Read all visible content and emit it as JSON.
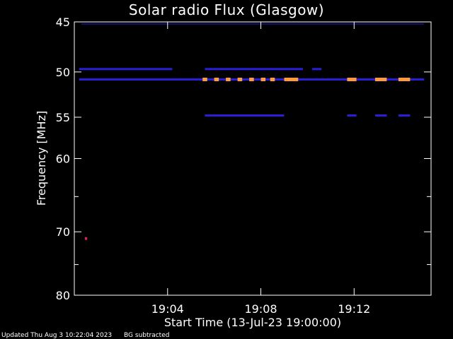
{
  "chart_data": {
    "type": "heatmap",
    "title": "Solar radio Flux (Glasgow)",
    "xlabel": "Start Time (13-Jul-23 19:00:00)",
    "ylabel": "Frequency [MHz]",
    "x_range_min": [
      0,
      15.3
    ],
    "y_range_mhz": [
      45,
      80
    ],
    "y_scale": "log",
    "x_tick_labels": [
      "19:04",
      "19:08",
      "19:12"
    ],
    "x_tick_values_min": [
      4,
      8,
      12
    ],
    "y_tick_labels": [
      "45",
      "50",
      "55",
      "60",
      "70",
      "80"
    ],
    "y_tick_values": [
      45,
      50,
      55,
      60,
      70,
      80
    ],
    "y_minor_ticks": [
      65,
      75
    ],
    "background": "#000000",
    "colors": {
      "strong": "#ff9a40",
      "medium": "#d8206a",
      "weak": "#2a1ed8",
      "faint": "#14106a"
    },
    "bands": [
      {
        "freq_mhz": 50.8,
        "level": "strong",
        "segments": [
          [
            5.5,
            5.7
          ],
          [
            6.0,
            6.2
          ],
          [
            6.5,
            6.7
          ],
          [
            7.0,
            7.2
          ],
          [
            7.5,
            7.7
          ],
          [
            8.0,
            8.2
          ],
          [
            8.4,
            8.6
          ],
          [
            9.0,
            9.6
          ],
          [
            11.7,
            12.1
          ],
          [
            12.9,
            13.4
          ],
          [
            13.9,
            14.4
          ]
        ]
      },
      {
        "freq_mhz": 50.8,
        "level": "weak",
        "segments": [
          [
            0.2,
            15.0
          ]
        ]
      },
      {
        "freq_mhz": 49.7,
        "level": "weak",
        "segments": [
          [
            0.2,
            4.2
          ],
          [
            5.6,
            9.8
          ],
          [
            10.2,
            10.6
          ]
        ]
      },
      {
        "freq_mhz": 54.8,
        "level": "weak",
        "segments": [
          [
            5.6,
            9.0
          ],
          [
            11.7,
            12.1
          ],
          [
            12.9,
            13.4
          ],
          [
            13.9,
            14.4
          ]
        ]
      },
      {
        "freq_mhz": 45.2,
        "level": "faint",
        "segments": [
          [
            0.3,
            15.0
          ]
        ]
      },
      {
        "freq_mhz": 71.0,
        "level": "medium",
        "segments": [
          [
            0.45,
            0.55
          ]
        ]
      }
    ]
  },
  "footer": {
    "updated": "Updated Thu Aug  3 10:22:04 2023",
    "note": "BG subtracted"
  }
}
